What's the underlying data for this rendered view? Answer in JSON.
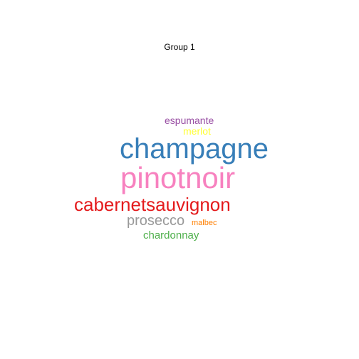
{
  "chart_data": {
    "type": "wordcloud",
    "title": "Group 1",
    "words": [
      {
        "text": "espumante",
        "weight": 2,
        "color": "#984EA3"
      },
      {
        "text": "merlot",
        "weight": 2,
        "color": "#FFFF33"
      },
      {
        "text": "champagne",
        "weight": 9,
        "color": "#377EB8"
      },
      {
        "text": "pinotnoir",
        "weight": 10,
        "color": "#F781BF"
      },
      {
        "text": "cabernetsauvignon",
        "weight": 7,
        "color": "#E41A1C"
      },
      {
        "text": "prosecco",
        "weight": 4,
        "color": "#999999"
      },
      {
        "text": "malbec",
        "weight": 1,
        "color": "#FF7F00"
      },
      {
        "text": "chardonnay",
        "weight": 3,
        "color": "#4DAF4A"
      }
    ]
  }
}
